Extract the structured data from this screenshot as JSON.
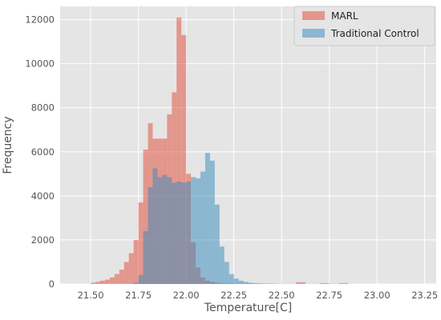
{
  "chart_data": {
    "type": "histogram",
    "title": "",
    "xlabel": "Temperature[C]",
    "ylabel": "Frequency",
    "xlim": [
      21.34,
      23.31
    ],
    "ylim": [
      0,
      12600
    ],
    "grid": true,
    "style": "ggplot",
    "bin_width": 0.025,
    "x_ticks": [
      "21.50",
      "21.75",
      "22.00",
      "22.25",
      "22.50",
      "22.75",
      "23.00",
      "23.25"
    ],
    "y_ticks": [
      "0",
      "2000",
      "4000",
      "6000",
      "8000",
      "10000",
      "12000"
    ],
    "legend": {
      "position": "top-right",
      "entries": [
        "MARL",
        "Traditional Control"
      ]
    },
    "series": [
      {
        "name": "MARL",
        "color": "#E24A33",
        "alpha": 0.5,
        "bins": [
          {
            "x": 21.5,
            "v": 60
          },
          {
            "x": 21.525,
            "v": 100
          },
          {
            "x": 21.55,
            "v": 150
          },
          {
            "x": 21.575,
            "v": 200
          },
          {
            "x": 21.6,
            "v": 300
          },
          {
            "x": 21.625,
            "v": 450
          },
          {
            "x": 21.65,
            "v": 650
          },
          {
            "x": 21.675,
            "v": 1000
          },
          {
            "x": 21.7,
            "v": 1400
          },
          {
            "x": 21.725,
            "v": 2000
          },
          {
            "x": 21.75,
            "v": 3700
          },
          {
            "x": 21.775,
            "v": 6100
          },
          {
            "x": 21.8,
            "v": 7300
          },
          {
            "x": 21.825,
            "v": 6600
          },
          {
            "x": 21.85,
            "v": 6600
          },
          {
            "x": 21.875,
            "v": 6600
          },
          {
            "x": 21.9,
            "v": 7700
          },
          {
            "x": 21.925,
            "v": 8700
          },
          {
            "x": 21.95,
            "v": 12100
          },
          {
            "x": 21.975,
            "v": 11300
          },
          {
            "x": 22.0,
            "v": 5000
          },
          {
            "x": 22.025,
            "v": 1900
          },
          {
            "x": 22.05,
            "v": 750
          },
          {
            "x": 22.075,
            "v": 300
          },
          {
            "x": 22.1,
            "v": 150
          },
          {
            "x": 22.125,
            "v": 100
          },
          {
            "x": 22.15,
            "v": 60
          },
          {
            "x": 22.175,
            "v": 40
          },
          {
            "x": 22.2,
            "v": 30
          },
          {
            "x": 22.225,
            "v": 25
          },
          {
            "x": 22.25,
            "v": 20
          },
          {
            "x": 22.275,
            "v": 20
          },
          {
            "x": 22.3,
            "v": 15
          },
          {
            "x": 22.325,
            "v": 15
          },
          {
            "x": 22.35,
            "v": 10
          },
          {
            "x": 22.375,
            "v": 10
          },
          {
            "x": 22.4,
            "v": 10
          },
          {
            "x": 22.425,
            "v": 10
          },
          {
            "x": 22.45,
            "v": 10
          },
          {
            "x": 22.475,
            "v": 10
          },
          {
            "x": 22.5,
            "v": 10
          },
          {
            "x": 22.525,
            "v": 10
          },
          {
            "x": 22.55,
            "v": 10
          },
          {
            "x": 22.575,
            "v": 80
          },
          {
            "x": 22.6,
            "v": 80
          },
          {
            "x": 22.625,
            "v": 10
          },
          {
            "x": 22.65,
            "v": 10
          },
          {
            "x": 22.675,
            "v": 10
          },
          {
            "x": 22.7,
            "v": 40
          },
          {
            "x": 22.725,
            "v": 40
          },
          {
            "x": 22.75,
            "v": 10
          },
          {
            "x": 22.775,
            "v": 10
          },
          {
            "x": 22.8,
            "v": 40
          },
          {
            "x": 22.825,
            "v": 40
          }
        ]
      },
      {
        "name": "Traditional Control",
        "color": "#348ABD",
        "alpha": 0.5,
        "bins": [
          {
            "x": 21.725,
            "v": 50
          },
          {
            "x": 21.75,
            "v": 400
          },
          {
            "x": 21.775,
            "v": 2400
          },
          {
            "x": 21.8,
            "v": 4400
          },
          {
            "x": 21.825,
            "v": 5250
          },
          {
            "x": 21.85,
            "v": 4850
          },
          {
            "x": 21.875,
            "v": 4950
          },
          {
            "x": 21.9,
            "v": 4850
          },
          {
            "x": 21.925,
            "v": 4600
          },
          {
            "x": 21.95,
            "v": 4650
          },
          {
            "x": 21.975,
            "v": 4600
          },
          {
            "x": 22.0,
            "v": 4650
          },
          {
            "x": 22.025,
            "v": 4850
          },
          {
            "x": 22.05,
            "v": 4800
          },
          {
            "x": 22.075,
            "v": 5100
          },
          {
            "x": 22.1,
            "v": 5950
          },
          {
            "x": 22.125,
            "v": 5600
          },
          {
            "x": 22.15,
            "v": 3600
          },
          {
            "x": 22.175,
            "v": 1700
          },
          {
            "x": 22.2,
            "v": 1000
          },
          {
            "x": 22.225,
            "v": 450
          },
          {
            "x": 22.25,
            "v": 250
          },
          {
            "x": 22.275,
            "v": 150
          },
          {
            "x": 22.3,
            "v": 100
          },
          {
            "x": 22.325,
            "v": 60
          },
          {
            "x": 22.35,
            "v": 40
          },
          {
            "x": 22.375,
            "v": 30
          },
          {
            "x": 22.4,
            "v": 20
          },
          {
            "x": 22.425,
            "v": 15
          },
          {
            "x": 22.45,
            "v": 10
          }
        ]
      }
    ]
  }
}
